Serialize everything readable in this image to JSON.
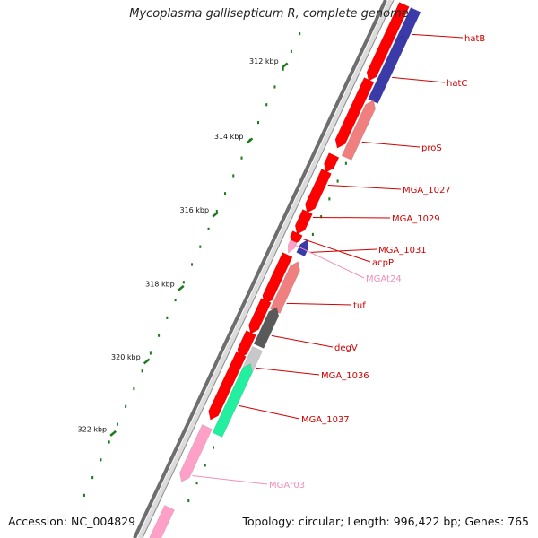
{
  "title": "Mycoplasma gallisepticum R, complete genome",
  "accession": {
    "prefix": "Accession:",
    "value": "NC_004829"
  },
  "summary": {
    "topology_label": "Topology:",
    "topology": "circular",
    "length_label": "Length:",
    "length": "996,422 bp",
    "genes_label": "Genes:",
    "genes": "765"
  },
  "colors": {
    "forward_cds": "#ff0000",
    "forward_cds_dark": "#b80000",
    "reverse_cds": "#f08080",
    "blue": "#3a3aa8",
    "dark_gray": "#5a5a5a",
    "light_gray": "#c8c8c8",
    "teal": "#22f0a0",
    "pink": "#ffa0c8",
    "tick": "#1b7a1b",
    "label_red": "#d00000",
    "label_pink": "#f090b8"
  },
  "ruler": {
    "ticks": [
      "312 kbp",
      "314 kbp",
      "316 kbp",
      "318 kbp",
      "320 kbp",
      "322 kbp"
    ]
  },
  "genes": [
    {
      "name": "hatB",
      "color": "blue",
      "label_color": "label_red"
    },
    {
      "name": "hatC",
      "color": "blue",
      "label_color": "label_red"
    },
    {
      "name": "proS",
      "color": "reverse_cds",
      "label_color": "label_red"
    },
    {
      "name": "MGA_1027",
      "color": "forward_cds",
      "label_color": "label_red"
    },
    {
      "name": "MGA_1029",
      "color": "forward_cds",
      "label_color": "label_red"
    },
    {
      "name": "MGA_1031",
      "color": "blue",
      "label_color": "label_red"
    },
    {
      "name": "acpP",
      "color": "forward_cds",
      "label_color": "label_red"
    },
    {
      "name": "MGAt24",
      "color": "pink",
      "label_color": "label_pink"
    },
    {
      "name": "tuf",
      "color": "reverse_cds",
      "label_color": "label_red"
    },
    {
      "name": "degV",
      "color": "dark_gray",
      "label_color": "label_red"
    },
    {
      "name": "MGA_1036",
      "color": "light_gray",
      "label_color": "label_red"
    },
    {
      "name": "MGA_1037",
      "color": "teal",
      "label_color": "label_red"
    },
    {
      "name": "MGAr03",
      "color": "pink",
      "label_color": "label_pink"
    }
  ]
}
